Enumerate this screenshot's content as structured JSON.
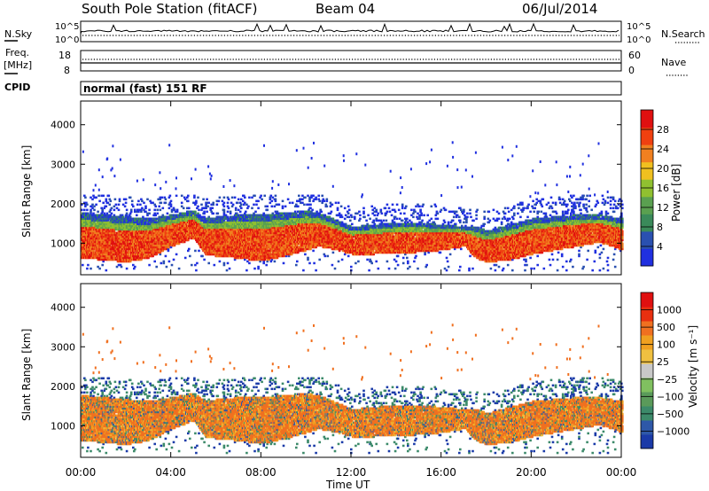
{
  "header": {
    "station": "South Pole Station (fitACF)",
    "beam": "Beam 04",
    "date": "06/Jul/2014"
  },
  "nsky_panel": {
    "left_label": "N.Sky",
    "right_label": "N.Search",
    "y_ticks": [
      "10^5",
      "10^0"
    ]
  },
  "freq_panel": {
    "left_label_1": "Freq.",
    "left_label_2": "[MHz]",
    "right_label": "Nave",
    "left_ticks": [
      "18",
      "8"
    ],
    "right_ticks": [
      "60",
      "0"
    ]
  },
  "cpid_panel": {
    "label": "CPID",
    "mode": "normal (fast) 151 RF"
  },
  "chart_data": [
    {
      "type": "heatmap",
      "name": "power",
      "ylabel": "Slant Range [km]",
      "yticks": [
        "1000",
        "2000",
        "3000",
        "4000"
      ],
      "ylim": [
        200,
        4600
      ],
      "colorbar_label": "Power [dB]",
      "colorbar_ticks": [
        "4",
        "8",
        "12",
        "16",
        "20",
        "24",
        "28"
      ],
      "colorbar_colors": [
        "#2030e0",
        "#2a50b0",
        "#3a8a5a",
        "#5aa050",
        "#90c030",
        "#f0c020",
        "#f08020",
        "#f04010",
        "#e01010"
      ],
      "echo_band_hours": [
        0,
        1,
        2,
        3,
        4,
        5,
        5.5,
        6,
        7,
        8,
        9,
        10,
        10.5,
        11,
        12,
        13,
        14,
        15,
        16,
        17,
        17.5,
        18,
        19,
        20,
        21,
        22,
        23,
        24
      ],
      "echo_band_bottom_km": [
        600,
        550,
        500,
        600,
        900,
        1100,
        700,
        650,
        600,
        520,
        650,
        800,
        900,
        850,
        700,
        700,
        720,
        750,
        800,
        900,
        600,
        500,
        550,
        700,
        800,
        900,
        1000,
        800
      ],
      "echo_band_top_km": [
        1750,
        1700,
        1650,
        1600,
        1700,
        1800,
        1600,
        1650,
        1700,
        1700,
        1750,
        1800,
        1750,
        1650,
        1400,
        1450,
        1500,
        1500,
        1450,
        1400,
        1400,
        1300,
        1450,
        1600,
        1650,
        1700,
        1700,
        1600
      ]
    },
    {
      "type": "heatmap",
      "name": "velocity",
      "ylabel": "Slant Range [km]",
      "yticks": [
        "1000",
        "2000",
        "3000",
        "4000"
      ],
      "ylim": [
        200,
        4600
      ],
      "xlabel": "Time UT",
      "xticks": [
        "00:00",
        "04:00",
        "08:00",
        "12:00",
        "16:00",
        "20:00",
        "00:00"
      ],
      "xlim_hours": [
        0,
        24
      ],
      "colorbar_label": "Velocity [m s⁻¹]",
      "colorbar_ticks": [
        "1000",
        "500",
        "100",
        "25",
        "−25",
        "−100",
        "−500",
        "−1000"
      ],
      "colorbar_colors": [
        "#1a3aa8",
        "#2e58a8",
        "#3c8a6a",
        "#5a9a5a",
        "#80c060",
        "#c8c8c8",
        "#f0c040",
        "#f0a020",
        "#f07020",
        "#e83010",
        "#e01010"
      ]
    }
  ]
}
